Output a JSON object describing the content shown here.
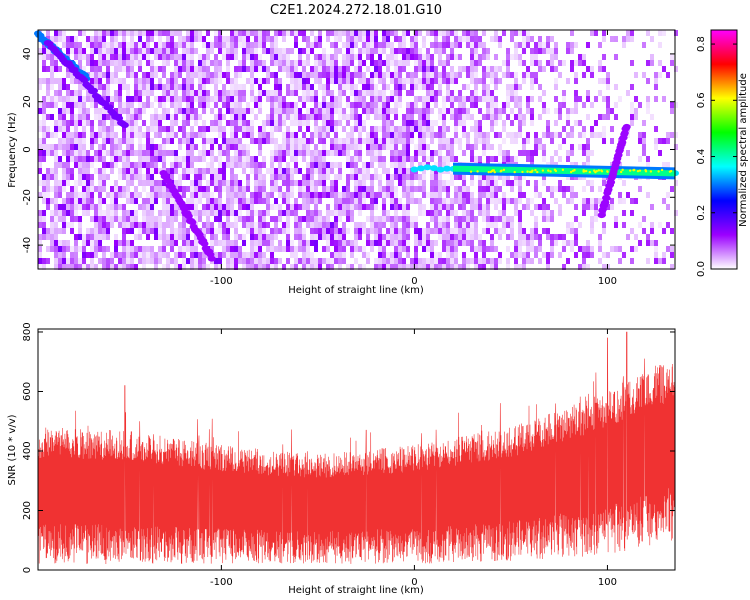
{
  "title": "C2E1.2024.272.18.01.G10",
  "chart_data": [
    {
      "type": "heatmap",
      "title": "C2E1.2024.272.18.01.G10",
      "xlabel": "Height of straight line (km)",
      "ylabel": "Frequency (Hz)",
      "xlim": [
        -195,
        135
      ],
      "ylim": [
        -50,
        50
      ],
      "x_ticks": [
        -100,
        0,
        100
      ],
      "y_ticks": [
        -40,
        -20,
        0,
        20,
        40
      ],
      "colorbar": {
        "label": "Normalized spectral amplitude",
        "range": [
          0,
          0.85
        ],
        "ticks": [
          0.0,
          0.2,
          0.4,
          0.6,
          0.8
        ],
        "tick_labels": [
          "0.0",
          "0.2",
          "0.4",
          "0.6",
          "0.8"
        ],
        "colors": [
          "#ffffff",
          "#9b00ff",
          "#0000ff",
          "#00ffff",
          "#00ff00",
          "#ffff00",
          "#ff0000",
          "#ff00ff"
        ]
      },
      "features": [
        {
          "name": "strong line",
          "x": [
            0,
            135
          ],
          "y": [
            -8,
            -10
          ],
          "amplitude": 0.35
        },
        {
          "name": "diagonal upper left",
          "x": [
            -195,
            -170
          ],
          "y": [
            48,
            30
          ],
          "amplitude": 0.3
        },
        {
          "name": "diagonal",
          "x": [
            -190,
            -150
          ],
          "y": [
            45,
            10
          ],
          "amplitude": 0.15
        },
        {
          "name": "diagonal",
          "x": [
            -130,
            -105
          ],
          "y": [
            -10,
            -45
          ],
          "amplitude": 0.12
        },
        {
          "name": "diagonal right",
          "x": [
            97,
            110
          ],
          "y": [
            -27,
            10
          ],
          "amplitude": 0.12
        }
      ]
    },
    {
      "type": "line",
      "xlabel": "Height of straight line (km)",
      "ylabel": "SNR (10 * v/v)",
      "xlim": [
        -195,
        135
      ],
      "ylim": [
        0,
        810
      ],
      "x_ticks": [
        -100,
        0,
        100
      ],
      "y_ticks": [
        0,
        200,
        400,
        600,
        800
      ],
      "color": "#f03232",
      "envelope": {
        "x": [
          -195,
          -150,
          -100,
          -50,
          0,
          50,
          100,
          120,
          135
        ],
        "upper": [
          480,
          470,
          420,
          390,
          420,
          480,
          600,
          680,
          700
        ],
        "lower": [
          20,
          20,
          20,
          20,
          20,
          30,
          50,
          80,
          100
        ],
        "peaks": [
          [
            -150,
            620
          ],
          [
            -25,
            470
          ],
          [
            110,
            800
          ],
          [
            100,
            780
          ]
        ]
      }
    }
  ]
}
